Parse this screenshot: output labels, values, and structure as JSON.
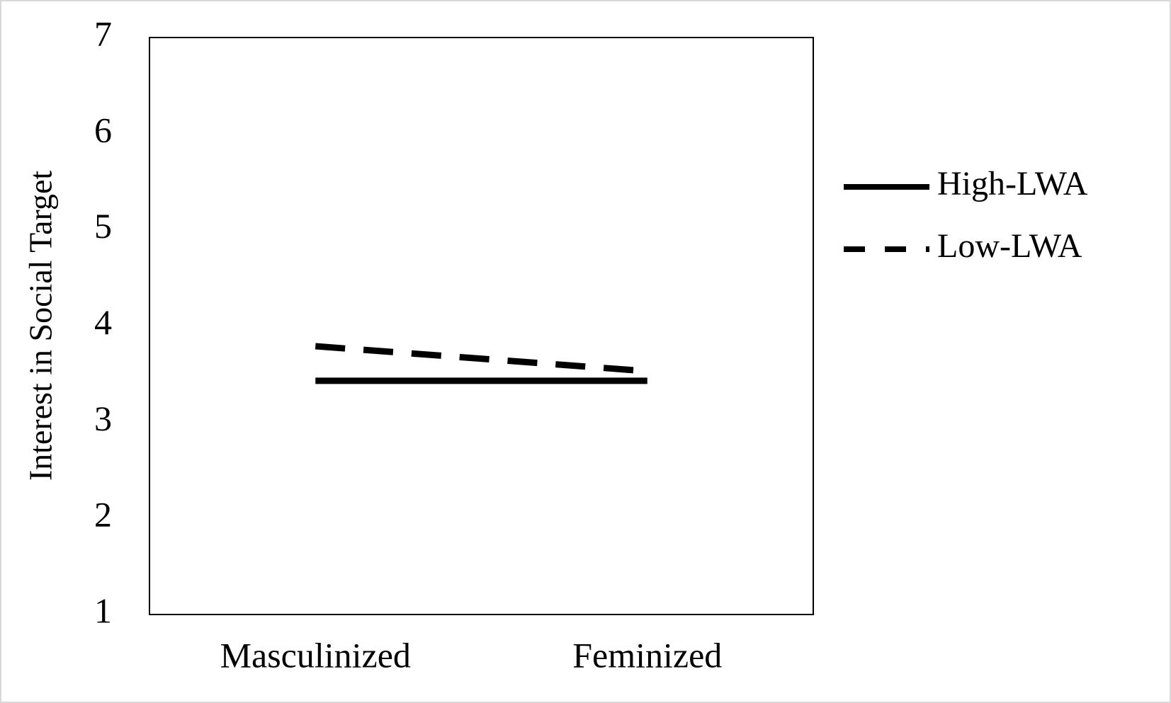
{
  "chart_data": {
    "type": "line",
    "y_label": "Interest in Social Target",
    "categories": [
      "Masculinized",
      "Feminized"
    ],
    "series": [
      {
        "name": "High-LWA",
        "color": "#000000",
        "line_style": "solid",
        "values": [
          3.43,
          3.43
        ]
      },
      {
        "name": "Low-LWA",
        "color": "#000000",
        "line_style": "dashed",
        "values": [
          3.79,
          3.53
        ]
      }
    ],
    "ylim": [
      1,
      7
    ],
    "yticks": [
      1,
      2,
      3,
      4,
      5,
      6,
      7
    ],
    "grid": false,
    "legend": "right"
  }
}
